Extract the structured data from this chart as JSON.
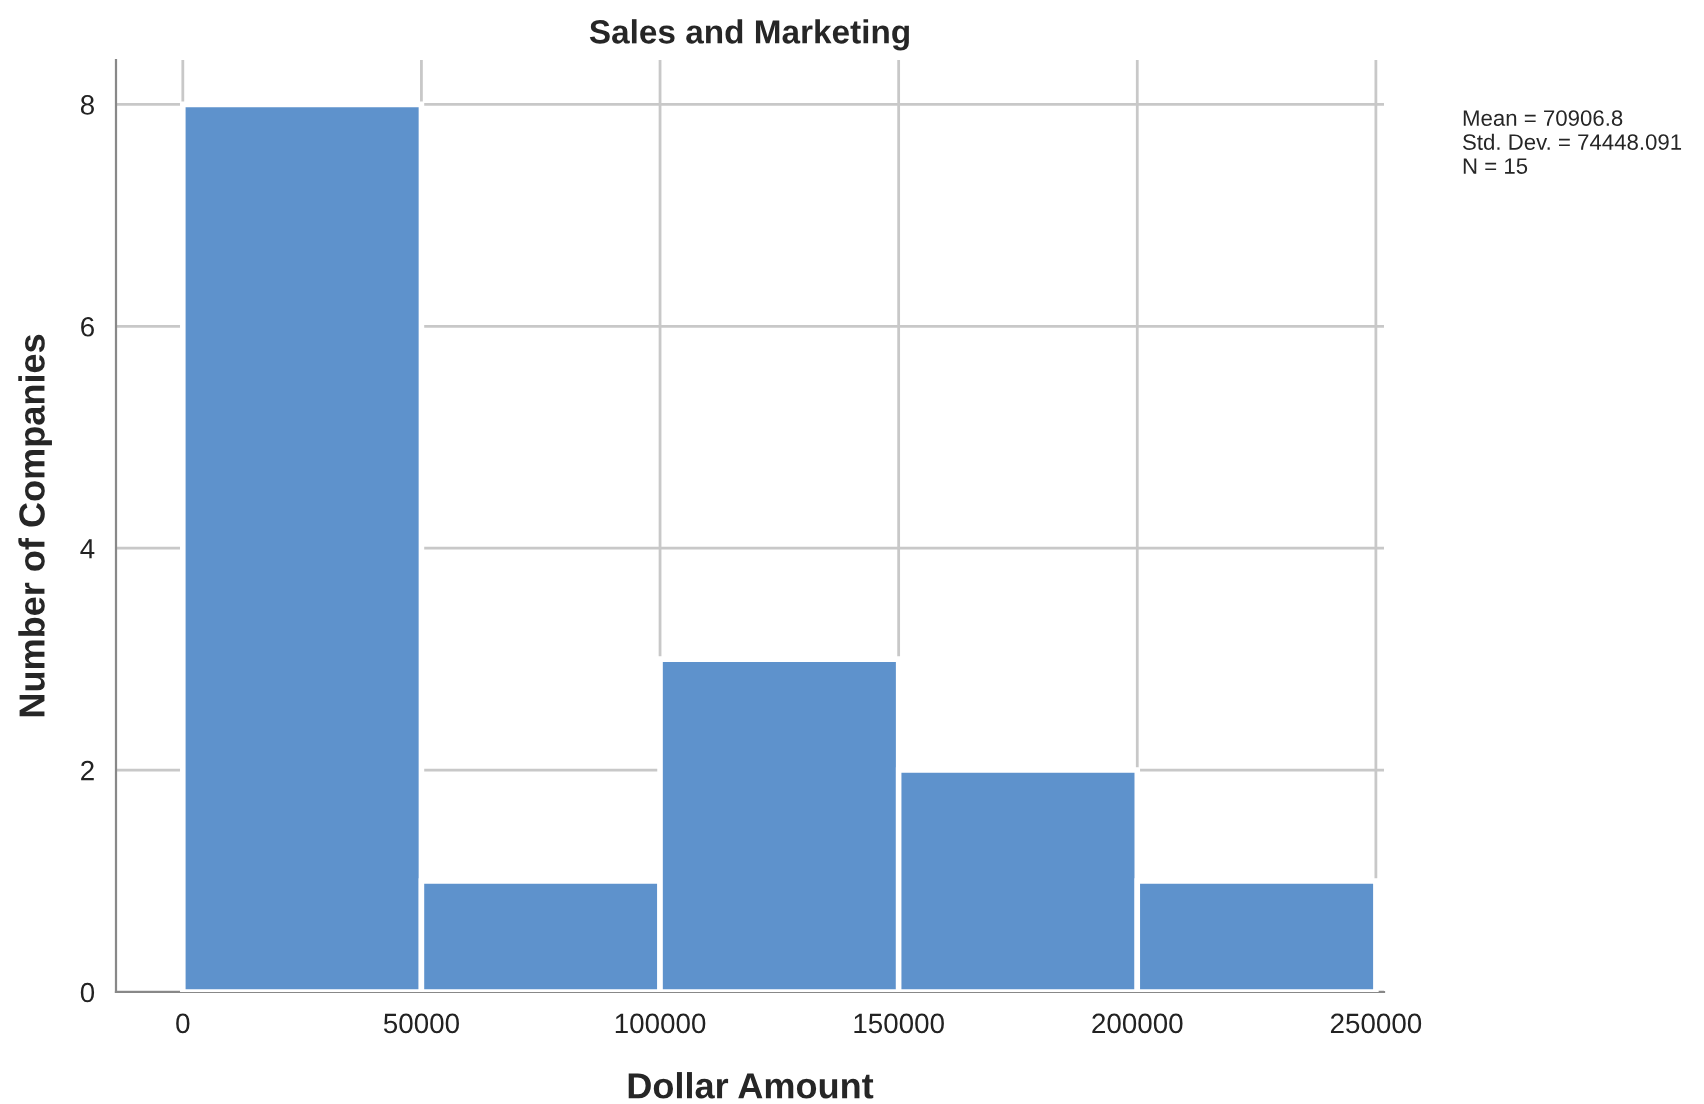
{
  "chart_data": {
    "type": "histogram",
    "title": "Sales and Marketing",
    "xlabel": "Dollar Amount",
    "ylabel": "Number of Companies",
    "bins": [
      0,
      50000,
      100000,
      150000,
      200000,
      250000
    ],
    "values": [
      8,
      1,
      3,
      2,
      1
    ],
    "color": "#5e92cc",
    "xlim": [
      -14000,
      251700
    ],
    "ylim": [
      0,
      8.4
    ],
    "xticks": [
      0,
      50000,
      100000,
      150000,
      200000,
      250000
    ],
    "yticks": [
      0,
      2,
      4,
      6,
      8
    ],
    "grid": true,
    "annotations": [
      "Mean = 70906.8",
      "Std. Dev. = 74448.091",
      "N = 15"
    ]
  }
}
